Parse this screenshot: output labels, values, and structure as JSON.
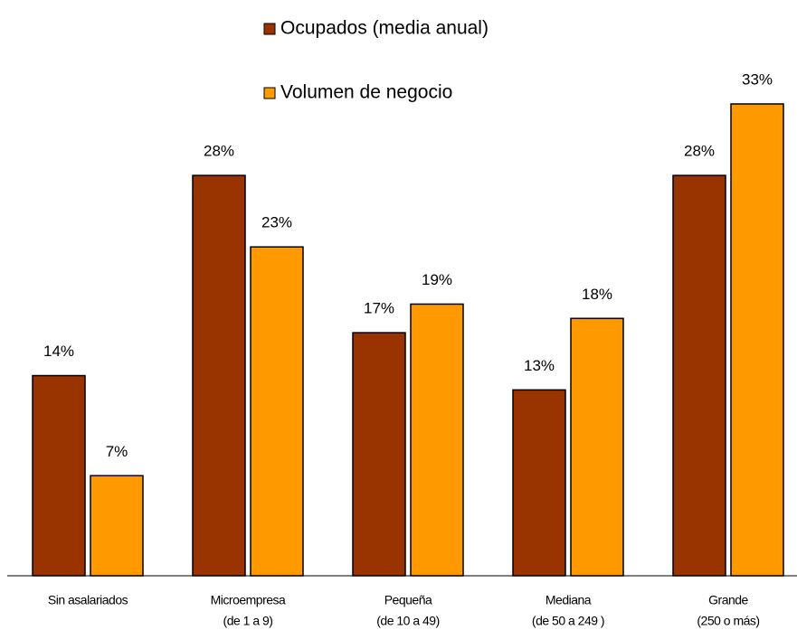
{
  "chart_data": {
    "type": "bar",
    "categories": [
      [
        "Sin asalariados"
      ],
      [
        "Microempresa",
        "(de 1 a 9)"
      ],
      [
        "Pequeña",
        "(de 10 a 49)"
      ],
      [
        "Mediana",
        "(de 50  a 249 )"
      ],
      [
        "Grande",
        "(250 o más)"
      ]
    ],
    "series": [
      {
        "name": "Ocupados (media anual)",
        "color": "#993300",
        "values": [
          14,
          28,
          17,
          13,
          28
        ],
        "value_labels": [
          "14%",
          "28%",
          "17%",
          "13%",
          "28%"
        ]
      },
      {
        "name": "Volumen de negocio",
        "color": "#FF9900",
        "values": [
          7,
          23,
          19,
          18,
          33
        ],
        "value_labels": [
          "7%",
          "23%",
          "19%",
          "18%",
          "33%"
        ]
      }
    ]
  }
}
